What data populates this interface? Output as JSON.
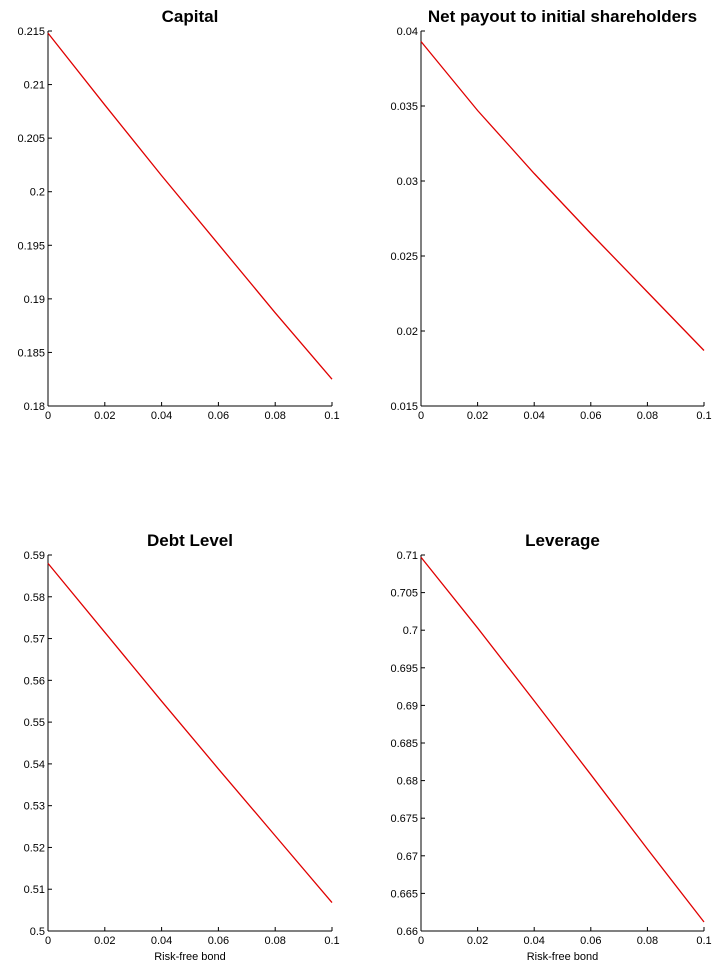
{
  "chart_data": [
    {
      "type": "line",
      "title": "Capital",
      "xlabel": "",
      "ylabel": "",
      "xlim": [
        0,
        0.1
      ],
      "ylim": [
        0.18,
        0.215
      ],
      "xticks": [
        "0",
        "0.02",
        "0.04",
        "0.06",
        "0.08",
        "0.1"
      ],
      "yticks": [
        "0.18",
        "0.185",
        "0.19",
        "0.195",
        "0.2",
        "0.205",
        "0.21",
        "0.215"
      ],
      "series": [
        {
          "color": "#e00000",
          "x": [
            0,
            0.02,
            0.04,
            0.06,
            0.08,
            0.1
          ],
          "y": [
            0.2148,
            0.2081,
            0.2015,
            0.1951,
            0.1887,
            0.1825
          ]
        }
      ]
    },
    {
      "type": "line",
      "title": "Net payout to initial shareholders",
      "xlabel": "",
      "ylabel": "",
      "xlim": [
        0,
        0.1
      ],
      "ylim": [
        0.015,
        0.04
      ],
      "xticks": [
        "0",
        "0.02",
        "0.04",
        "0.06",
        "0.08",
        "0.1"
      ],
      "yticks": [
        "0.015",
        "0.02",
        "0.025",
        "0.03",
        "0.035",
        "0.04"
      ],
      "series": [
        {
          "color": "#e00000",
          "x": [
            0,
            0.02,
            0.04,
            0.06,
            0.08,
            0.1
          ],
          "y": [
            0.0393,
            0.0347,
            0.0305,
            0.0265,
            0.0226,
            0.0187
          ]
        }
      ]
    },
    {
      "type": "line",
      "title": "Debt Level",
      "xlabel": "Risk-free bond",
      "ylabel": "",
      "xlim": [
        0,
        0.1
      ],
      "ylim": [
        0.5,
        0.59
      ],
      "xticks": [
        "0",
        "0.02",
        "0.04",
        "0.06",
        "0.08",
        "0.1"
      ],
      "yticks": [
        "0.5",
        "0.51",
        "0.52",
        "0.53",
        "0.54",
        "0.55",
        "0.56",
        "0.57",
        "0.58",
        "0.59"
      ],
      "series": [
        {
          "color": "#e00000",
          "x": [
            0,
            0.02,
            0.04,
            0.06,
            0.08,
            0.1
          ],
          "y": [
            0.588,
            0.5715,
            0.555,
            0.5388,
            0.5228,
            0.5068
          ]
        }
      ]
    },
    {
      "type": "line",
      "title": "Leverage",
      "xlabel": "Risk-free bond",
      "ylabel": "",
      "xlim": [
        0,
        0.1
      ],
      "ylim": [
        0.66,
        0.71
      ],
      "xticks": [
        "0",
        "0.02",
        "0.04",
        "0.06",
        "0.08",
        "0.1"
      ],
      "yticks": [
        "0.66",
        "0.665",
        "0.67",
        "0.675",
        "0.68",
        "0.685",
        "0.69",
        "0.695",
        "0.7",
        "0.705",
        "0.71"
      ],
      "series": [
        {
          "color": "#e00000",
          "x": [
            0,
            0.02,
            0.04,
            0.06,
            0.08,
            0.1
          ],
          "y": [
            0.7097,
            0.7003,
            0.6906,
            0.6808,
            0.6709,
            0.6612
          ]
        }
      ]
    }
  ]
}
